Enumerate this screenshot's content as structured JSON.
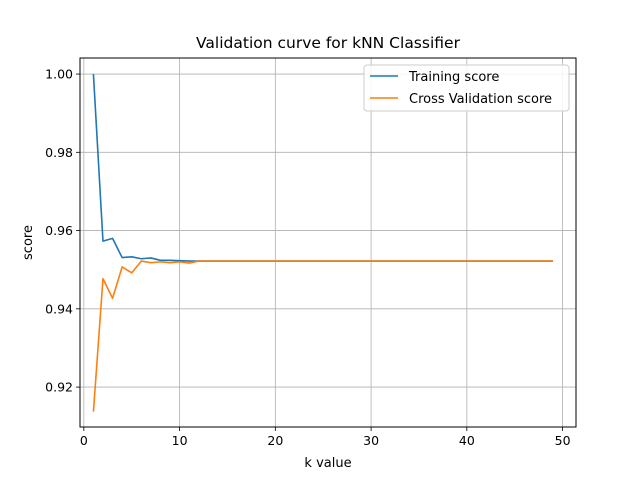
{
  "chart_data": {
    "type": "line",
    "title": "Validation curve for kNN Classifier",
    "xlabel": "k value",
    "ylabel": "score",
    "xlim": [
      -0.4,
      51.4
    ],
    "ylim": [
      0.9098,
      1.0041
    ],
    "xticks": [
      0,
      10,
      20,
      30,
      40,
      50
    ],
    "xtick_labels": [
      "0",
      "10",
      "20",
      "30",
      "40",
      "50"
    ],
    "yticks": [
      0.92,
      0.94,
      0.96,
      0.98,
      1.0
    ],
    "ytick_labels": [
      "0.92",
      "0.94",
      "0.96",
      "0.98",
      "1.00"
    ],
    "grid": true,
    "legend_position": "top-right",
    "x": [
      1,
      2,
      3,
      4,
      5,
      6,
      7,
      8,
      9,
      10,
      11,
      12,
      13,
      14,
      15,
      16,
      17,
      18,
      19,
      20,
      21,
      22,
      23,
      24,
      25,
      26,
      27,
      28,
      29,
      30,
      31,
      32,
      33,
      34,
      35,
      36,
      37,
      38,
      39,
      40,
      41,
      42,
      43,
      44,
      45,
      46,
      47,
      48,
      49
    ],
    "series": [
      {
        "name": "Training score",
        "color": "#1f77b4",
        "values": [
          1.0,
          0.9573,
          0.958,
          0.9531,
          0.9533,
          0.9528,
          0.953,
          0.9524,
          0.9524,
          0.9523,
          0.9522,
          0.9522,
          0.9522,
          0.9522,
          0.9522,
          0.9522,
          0.9522,
          0.9522,
          0.9522,
          0.9522,
          0.9522,
          0.9522,
          0.9522,
          0.9522,
          0.9522,
          0.9522,
          0.9522,
          0.9522,
          0.9522,
          0.9522,
          0.9522,
          0.9522,
          0.9522,
          0.9522,
          0.9522,
          0.9522,
          0.9522,
          0.9522,
          0.9522,
          0.9522,
          0.9522,
          0.9522,
          0.9522,
          0.9522,
          0.9522,
          0.9522,
          0.9522,
          0.9522,
          0.9522
        ]
      },
      {
        "name": "Cross Validation score",
        "color": "#ff7f0e",
        "values": [
          0.9137,
          0.9477,
          0.9427,
          0.9507,
          0.9492,
          0.9522,
          0.9518,
          0.952,
          0.9518,
          0.952,
          0.9517,
          0.9522,
          0.9522,
          0.9522,
          0.9522,
          0.9522,
          0.9522,
          0.9522,
          0.9522,
          0.9522,
          0.9522,
          0.9522,
          0.9522,
          0.9522,
          0.9522,
          0.9522,
          0.9522,
          0.9522,
          0.9522,
          0.9522,
          0.9522,
          0.9522,
          0.9522,
          0.9522,
          0.9522,
          0.9522,
          0.9522,
          0.9522,
          0.9522,
          0.9522,
          0.9522,
          0.9522,
          0.9522,
          0.9522,
          0.9522,
          0.9522,
          0.9522,
          0.9522,
          0.9522
        ]
      }
    ]
  }
}
